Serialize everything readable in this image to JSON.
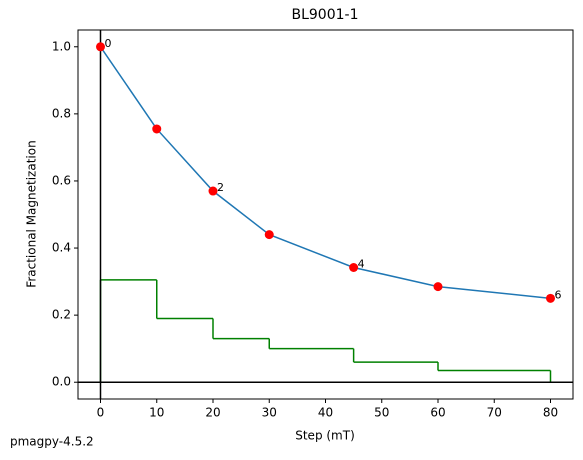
{
  "chart_data": {
    "type": "line",
    "title": "BL9001-1",
    "x_label": "Step (mT)",
    "y_label": "Fractional Magnetization",
    "footer": "pmagpy-4.5.2",
    "x": [
      0,
      10,
      20,
      30,
      45,
      60,
      80
    ],
    "series": [
      {
        "color": "#1f77b4",
        "marker_color": "#ff0000",
        "values": [
          1.0,
          0.755,
          0.57,
          0.44,
          0.342,
          0.285,
          0.25
        ]
      }
    ],
    "point_labels": [
      "0",
      null,
      "2",
      null,
      "4",
      null,
      "6"
    ],
    "steps": {
      "color": "#008000",
      "values": [
        0.305,
        0.19,
        0.13,
        0.1,
        0.06,
        0.035
      ]
    },
    "xlim": [
      -4,
      84
    ],
    "ylim": [
      -0.05,
      1.05
    ],
    "xticks": [
      0,
      10,
      20,
      30,
      40,
      50,
      60,
      70,
      80
    ],
    "yticks": [
      {
        "value": 0,
        "label": "0.0"
      },
      0.2,
      0.4,
      0.6,
      0.8,
      {
        "value": 1,
        "label": "1.0"
      }
    ],
    "zero_lines": true
  }
}
